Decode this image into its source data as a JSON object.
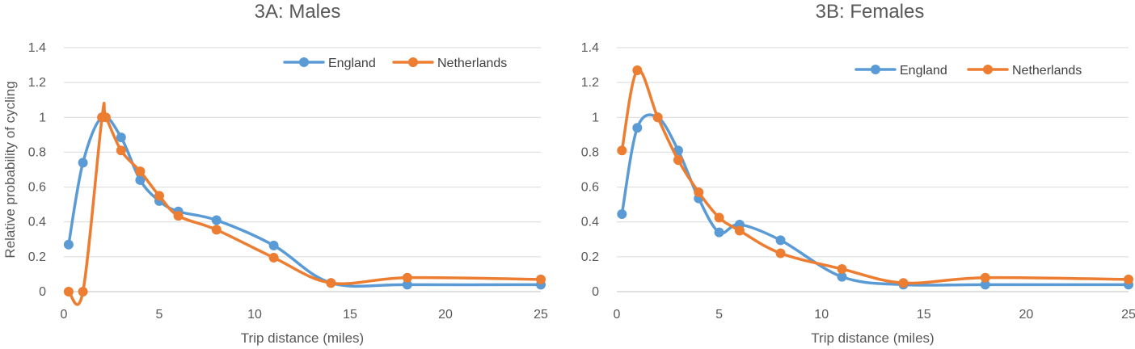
{
  "chart_data": [
    {
      "type": "line",
      "title": "3A: Males",
      "xlabel": "Trip distance (miles)",
      "ylabel": "Relative probability of cycling",
      "xlim": [
        0,
        25
      ],
      "ylim": [
        0,
        1.4
      ],
      "x_ticks": [
        0,
        5,
        10,
        15,
        20,
        25
      ],
      "y_ticks": [
        0,
        0.2,
        0.4,
        0.6,
        0.8,
        1,
        1.2,
        1.4
      ],
      "x_tick_labels": [
        "0",
        "5",
        "10",
        "15",
        "20",
        "25"
      ],
      "y_tick_labels": [
        "0",
        "0.2",
        "0.4",
        "0.6",
        "0.8",
        "1",
        "1.2",
        "1.4"
      ],
      "grid": "horizontal",
      "legend_position": "top-right",
      "smooth": true,
      "series": [
        {
          "name": "England",
          "color": "#5b9bd5",
          "x": [
            0.25,
            1,
            2,
            3,
            4,
            5,
            6,
            8,
            11,
            14,
            18,
            25
          ],
          "y": [
            0.27,
            0.74,
            1.0,
            0.885,
            0.64,
            0.52,
            0.46,
            0.41,
            0.265,
            0.05,
            0.04,
            0.04
          ]
        },
        {
          "name": "Netherlands",
          "color": "#ed7d31",
          "x": [
            0.25,
            1,
            2,
            2.2,
            3,
            4,
            5,
            6,
            8,
            11,
            14,
            18,
            25
          ],
          "y": [
            0.0,
            0.0,
            1.0,
            1.0,
            0.81,
            0.69,
            0.55,
            0.435,
            0.355,
            0.195,
            0.05,
            0.08,
            0.07
          ]
        }
      ]
    },
    {
      "type": "line",
      "title": "3B: Females",
      "xlabel": "Trip distance (miles)",
      "ylabel": "",
      "xlim": [
        0,
        25
      ],
      "ylim": [
        0,
        1.4
      ],
      "x_ticks": [
        0,
        5,
        10,
        15,
        20,
        25
      ],
      "y_ticks": [
        0,
        0.2,
        0.4,
        0.6,
        0.8,
        1,
        1.2,
        1.4
      ],
      "x_tick_labels": [
        "0",
        "5",
        "10",
        "15",
        "20",
        "25"
      ],
      "y_tick_labels": [
        "0",
        "0.2",
        "0.4",
        "0.6",
        "0.8",
        "1",
        "1.2",
        "1.4"
      ],
      "grid": "horizontal",
      "legend_position": "top-right",
      "smooth": true,
      "series": [
        {
          "name": "England",
          "color": "#5b9bd5",
          "x": [
            0.25,
            1,
            2,
            3,
            4,
            5,
            6,
            8,
            11,
            14,
            18,
            25
          ],
          "y": [
            0.445,
            0.94,
            1.0,
            0.81,
            0.535,
            0.34,
            0.385,
            0.295,
            0.085,
            0.04,
            0.04,
            0.04
          ]
        },
        {
          "name": "Netherlands",
          "color": "#ed7d31",
          "x": [
            0.25,
            1,
            2,
            3,
            4,
            5,
            6,
            8,
            11,
            14,
            18,
            25
          ],
          "y": [
            0.81,
            1.27,
            1.0,
            0.755,
            0.57,
            0.425,
            0.35,
            0.22,
            0.13,
            0.05,
            0.08,
            0.07
          ]
        }
      ]
    }
  ]
}
